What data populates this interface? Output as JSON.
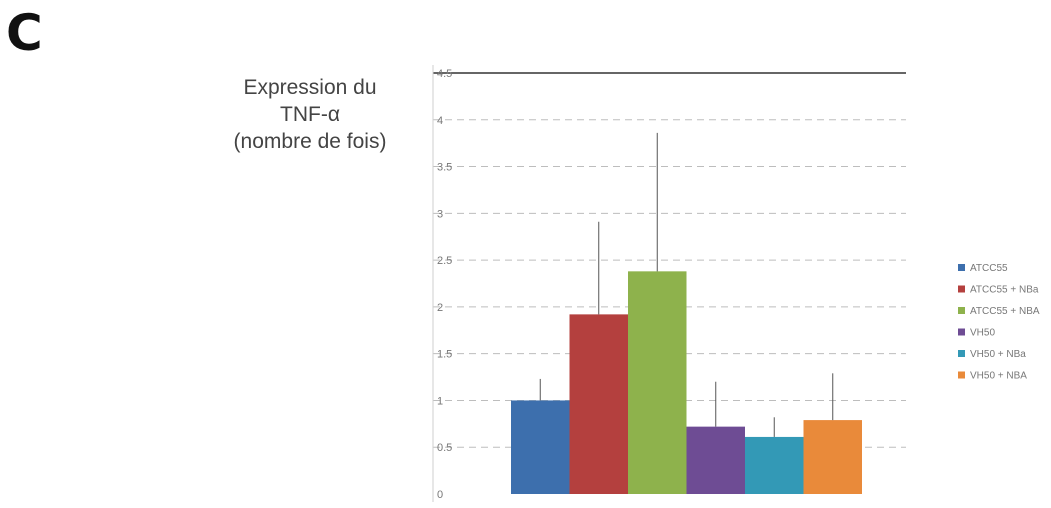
{
  "panel_label": "C",
  "chart_data": {
    "type": "bar",
    "ylabel": [
      "Expression du",
      "TNF-α",
      "(nombre de fois)"
    ],
    "ylim": [
      0,
      4.5
    ],
    "yticks": [
      0,
      0.5,
      1,
      1.5,
      2,
      2.5,
      3,
      3.5,
      4,
      4.5
    ],
    "ytick_labels": [
      "0",
      "0.5",
      "1",
      "1.5",
      "2",
      "2.5",
      "3",
      "3.5",
      "4",
      "4.5"
    ],
    "grid": true,
    "legend_position": "right",
    "series": [
      {
        "name": "ATCC55",
        "value": 1.0,
        "error": 0.23,
        "color": "#3d6fad"
      },
      {
        "name": "ATCC55 + NBa",
        "value": 1.92,
        "error": 0.99,
        "color": "#b4403e"
      },
      {
        "name": "ATCC55 + NBA",
        "value": 2.38,
        "error": 1.48,
        "color": "#8eb24c"
      },
      {
        "name": "VH50",
        "value": 0.72,
        "error": 0.48,
        "color": "#6e4c94"
      },
      {
        "name": "VH50 + NBa",
        "value": 0.61,
        "error": 0.21,
        "color": "#3399b6"
      },
      {
        "name": "VH50 + NBA",
        "value": 0.79,
        "error": 0.5,
        "color": "#e98a3a"
      }
    ]
  }
}
